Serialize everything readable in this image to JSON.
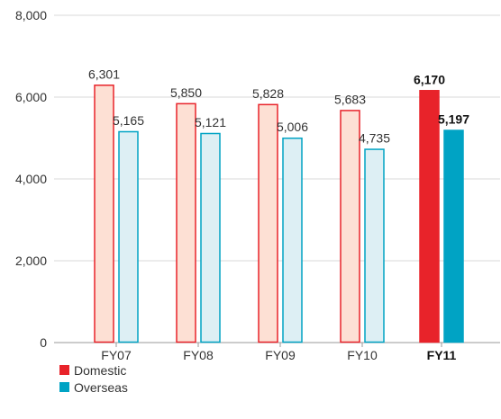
{
  "chart_data": {
    "type": "bar",
    "categories": [
      "FY07",
      "FY08",
      "FY09",
      "FY10",
      "FY11"
    ],
    "highlight_category": "FY11",
    "series": [
      {
        "name": "Domestic",
        "values": [
          6301,
          5850,
          5828,
          5683,
          6170
        ],
        "labels": [
          "6,301",
          "5,850",
          "5,828",
          "5,683",
          "6,170"
        ],
        "color": "#e8232a",
        "light_fill": "#fde0d4"
      },
      {
        "name": "Overseas",
        "values": [
          5165,
          5121,
          5006,
          4735,
          5197
        ],
        "labels": [
          "5,165",
          "5,121",
          "5,006",
          "4,735",
          "5,197"
        ],
        "color": "#00a3c4",
        "light_fill": "#ddeff4"
      }
    ],
    "yticks": [
      0,
      2000,
      4000,
      6000,
      8000
    ],
    "ytick_labels": [
      "0",
      "2,000",
      "4,000",
      "6,000",
      "8,000"
    ],
    "ylim": [
      0,
      8000
    ],
    "grid": true,
    "legend_position": "bottom-left"
  }
}
